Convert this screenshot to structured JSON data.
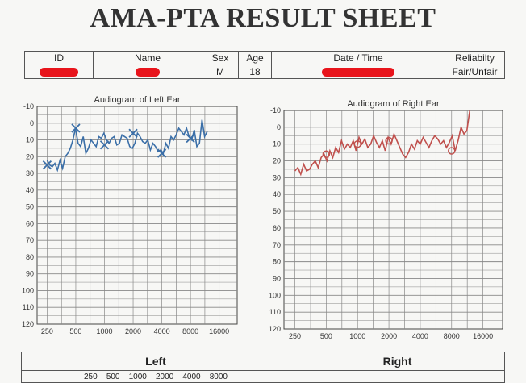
{
  "sheet": {
    "title": "AMA-PTA RESULT SHEET"
  },
  "info": {
    "headers": {
      "id": "ID",
      "name": "Name",
      "sex": "Sex",
      "age": "Age",
      "datetime": "Date / Time",
      "reliability": "Reliabilty"
    },
    "values": {
      "sex": "M",
      "age": "18",
      "reliability": "Fair/Unfair"
    }
  },
  "left_ear": {
    "title": "Audiogram of Left Ear",
    "line_color": "#3b6fa8",
    "y_ticks": [
      "-10",
      "0",
      "10",
      "20",
      "30",
      "40",
      "50",
      "60",
      "70",
      "80",
      "90",
      "100",
      "110",
      "120"
    ],
    "x_ticks": [
      "250",
      "500",
      "1000",
      "2000",
      "4000",
      "8000",
      "16000"
    ],
    "trace_db": [
      22,
      25,
      26,
      24,
      28,
      22,
      27,
      20,
      18,
      15,
      10,
      3,
      12,
      14,
      8,
      18,
      15,
      10,
      12,
      14,
      8,
      9,
      6,
      10,
      12,
      9,
      8,
      13,
      12,
      7,
      8,
      9,
      14,
      15,
      12,
      6,
      8,
      11,
      12,
      10,
      16,
      12,
      14,
      17,
      16,
      18,
      12,
      15,
      8,
      10,
      7,
      3,
      5,
      7,
      3,
      8,
      10,
      4,
      14,
      12,
      -2,
      8,
      5
    ],
    "markers": [
      {
        "hz": 250,
        "db": 25
      },
      {
        "hz": 500,
        "db": 3
      },
      {
        "hz": 1000,
        "db": 13
      },
      {
        "hz": 2000,
        "db": 6
      },
      {
        "hz": 4000,
        "db": 18
      },
      {
        "hz": 8000,
        "db": 9
      }
    ]
  },
  "right_ear": {
    "title": "Audiogram of Right Ear",
    "line_color": "#c0504d",
    "y_ticks": [
      "-10",
      "0",
      "10",
      "20",
      "30",
      "40",
      "50",
      "60",
      "70",
      "80",
      "90",
      "100",
      "110",
      "120"
    ],
    "x_ticks": [
      "250",
      "500",
      "1000",
      "2000",
      "4000",
      "8000",
      "16000"
    ],
    "trace_db": [
      26,
      24,
      28,
      22,
      26,
      25,
      22,
      20,
      24,
      18,
      16,
      20,
      14,
      18,
      12,
      15,
      8,
      13,
      10,
      12,
      8,
      14,
      6,
      10,
      7,
      12,
      10,
      5,
      9,
      12,
      8,
      14,
      6,
      10,
      4,
      8,
      12,
      16,
      18,
      15,
      10,
      13,
      8,
      10,
      6,
      9,
      12,
      8,
      5,
      7,
      10,
      8,
      12,
      9,
      5,
      14,
      8,
      0,
      4,
      2,
      -10
    ],
    "markers": [
      {
        "hz": 500,
        "db": 16
      },
      {
        "hz": 1000,
        "db": 10
      },
      {
        "hz": 2000,
        "db": 8
      },
      {
        "hz": 8000,
        "db": 14
      }
    ]
  },
  "bottom": {
    "left": "Left",
    "right": "Right",
    "freqs": [
      "250",
      "500",
      "1000",
      "2000",
      "4000",
      "8000"
    ]
  }
}
